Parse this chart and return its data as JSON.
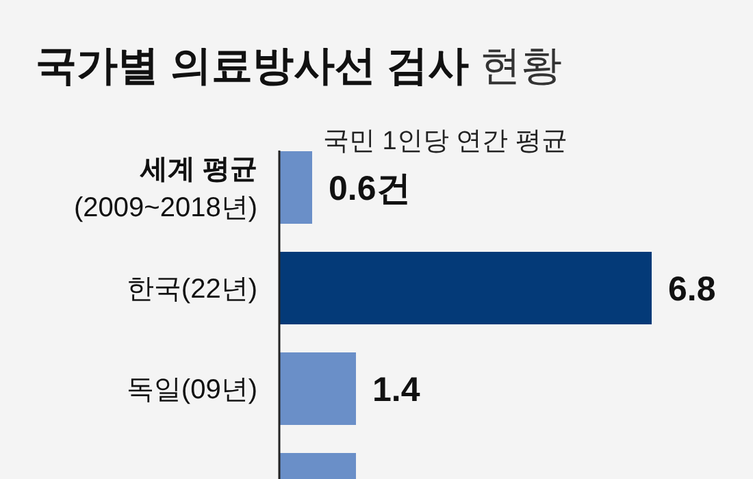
{
  "chart_data": {
    "type": "bar",
    "orientation": "horizontal",
    "title": "국가별 의료방사선 검사",
    "subtitle": "현황",
    "annotations": [
      "국민 1인당 연간 평균"
    ],
    "categories": [
      "세계 평균\n(2009~2018년)",
      "한국(22년)",
      "독일(09년)",
      null
    ],
    "values": [
      0.6,
      6.8,
      1.4,
      1.4
    ],
    "colors": [
      "#6a8fc8",
      "#043a78",
      "#6a8fc8",
      "#6a8fc8"
    ],
    "value_labels": [
      "0.6건",
      "6.8",
      "1.4",
      null
    ]
  }
}
